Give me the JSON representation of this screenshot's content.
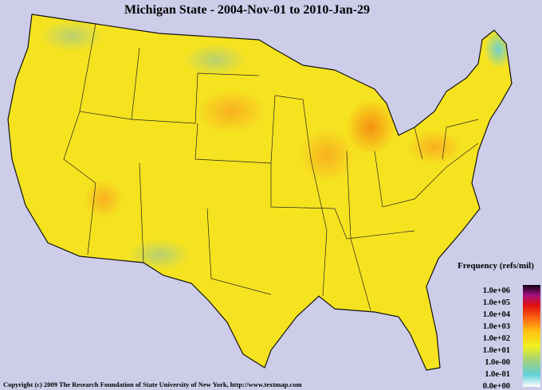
{
  "header": {
    "title": "Michigan State - 2004-Nov-01 to 2010-Jan-29"
  },
  "legend": {
    "title": "Frequency (refs/mil)",
    "labels": [
      "1.0e+06",
      "1.0e+05",
      "1.0e+04",
      "1.0e+03",
      "1.0e+02",
      "1.0e+01",
      "1.0e-00",
      "1.0e-01",
      "0.0e+00"
    ]
  },
  "footer": {
    "copyright": "Copyright (c) 2009 The Research Foundation of State University of New York, http://www.textmap.com"
  }
}
